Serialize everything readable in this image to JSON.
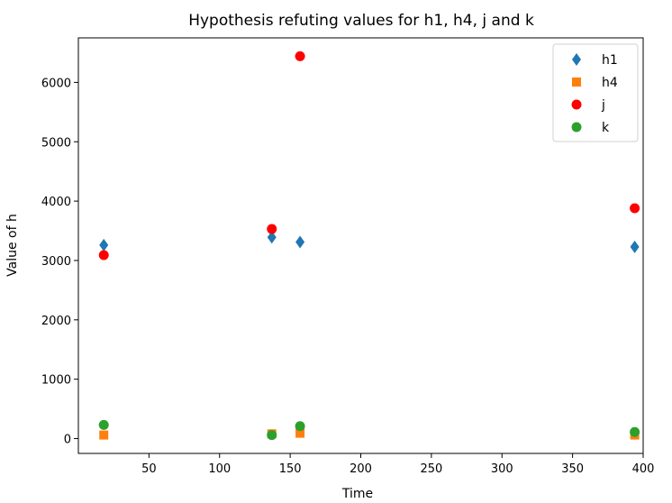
{
  "chart_data": {
    "type": "scatter",
    "title": "Hypothesis refuting values for h1, h4, j and k",
    "xlabel": "Time",
    "ylabel": "Value of h",
    "xlim": [
      0,
      400
    ],
    "ylim": [
      -250,
      6750
    ],
    "xticks": [
      50,
      100,
      150,
      200,
      250,
      300,
      350,
      400
    ],
    "yticks": [
      0,
      1000,
      2000,
      3000,
      4000,
      5000,
      6000
    ],
    "grid": false,
    "legend_position": "top-right",
    "series": [
      {
        "name": "h1",
        "marker": "diamond",
        "color": "#1f77b4",
        "x": [
          18,
          137,
          157,
          394
        ],
        "y": [
          3260,
          3390,
          3310,
          3230
        ]
      },
      {
        "name": "h4",
        "marker": "square",
        "color": "#ff7f0e",
        "x": [
          18,
          137,
          157,
          394
        ],
        "y": [
          60,
          80,
          90,
          60
        ]
      },
      {
        "name": "j",
        "marker": "circle",
        "color": "#ff0000",
        "x": [
          18,
          137,
          157,
          394
        ],
        "y": [
          3090,
          3530,
          6440,
          3880
        ]
      },
      {
        "name": "k",
        "marker": "circle",
        "color": "#2ca02c",
        "x": [
          18,
          137,
          157,
          394
        ],
        "y": [
          230,
          60,
          210,
          110
        ]
      }
    ]
  }
}
